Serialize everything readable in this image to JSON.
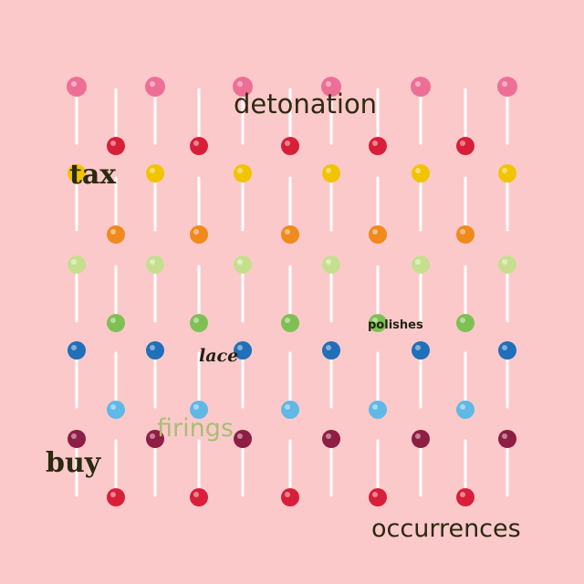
{
  "image": {
    "background_color": "#fcc9cb",
    "subject": "lollipops",
    "row_colors": [
      "#ee6f96",
      "#d81f3a",
      "#f2c400",
      "#f08a1c",
      "#c6df8f",
      "#7fc054",
      "#1f70b8",
      "#60b8e6",
      "#8e1e44",
      "#d81f3a"
    ]
  },
  "words": {
    "detonation": {
      "text": "detonation",
      "color": "#2f2a10"
    },
    "tax": {
      "text": "tax",
      "color": "#2a2a10"
    },
    "polishes": {
      "text": "polishes",
      "color": "#1f2410"
    },
    "lace": {
      "text": "lace",
      "color": "#232013"
    },
    "firings": {
      "text": "firings",
      "color": "#a6bf73"
    },
    "buy": {
      "text": "buy",
      "color": "#2a2a10"
    },
    "occurrences": {
      "text": "occurrences",
      "color": "#2a2a10"
    }
  }
}
